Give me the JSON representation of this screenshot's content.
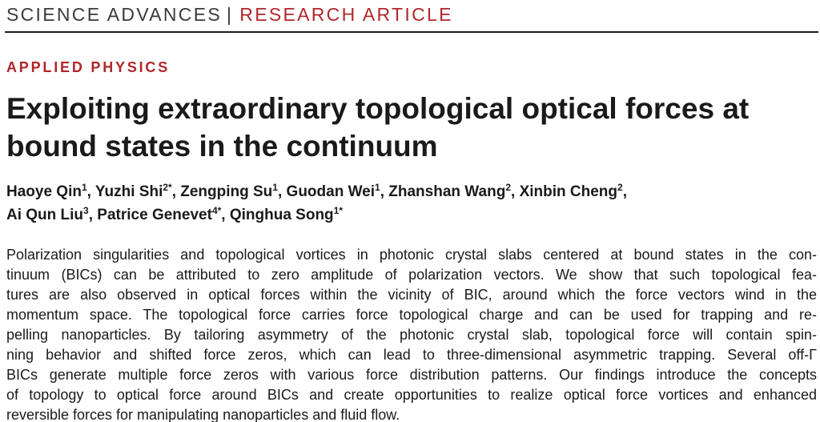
{
  "header": {
    "journal": "SCIENCE ADVANCES",
    "separator": "|",
    "article_type": "RESEARCH ARTICLE"
  },
  "section": "APPLIED PHYSICS",
  "title_lines": [
    "Exploiting extraordinary topological optical forces at",
    "bound states in the continuum"
  ],
  "authors": [
    {
      "name": "Haoye Qin",
      "aff": "1"
    },
    {
      "name": "Yuzhi Shi",
      "aff": "2*"
    },
    {
      "name": "Zengping Su",
      "aff": "1"
    },
    {
      "name": "Guodan Wei",
      "aff": "1"
    },
    {
      "name": "Zhanshan Wang",
      "aff": "2"
    },
    {
      "name": "Xinbin Cheng",
      "aff": "2"
    },
    {
      "name": "Ai Qun Liu",
      "aff": "3"
    },
    {
      "name": "Patrice Genevet",
      "aff": "4*"
    },
    {
      "name": "Qinghua Song",
      "aff": "1*"
    }
  ],
  "abstract_lines": [
    "Polarization singularities and topological vortices in photonic crystal slabs centered at bound states in the con-",
    "tinuum (BICs) can be attributed to zero amplitude of polarization vectors. We show that such topological fea-",
    "tures are also observed in optical forces within the vicinity of BIC, around which the force vectors wind in the",
    "momentum space. The topological force carries force topological charge and can be used for trapping and re-",
    "pelling nanoparticles. By tailoring asymmetry of the photonic crystal slab, topological force will contain spin-",
    "ning behavior and shifted force zeros, which can lead to three-dimensional asymmetric trapping. Several off-Γ",
    "BICs generate multiple force zeros with various force distribution patterns. Our findings introduce the concepts",
    "of topology to optical force around BICs and create opportunities to realize optical force vortices and enhanced",
    "reversible forces for manipulating nanoparticles and fluid flow."
  ],
  "colors": {
    "accent": "#b1262b",
    "text": "#1a1a1a"
  }
}
